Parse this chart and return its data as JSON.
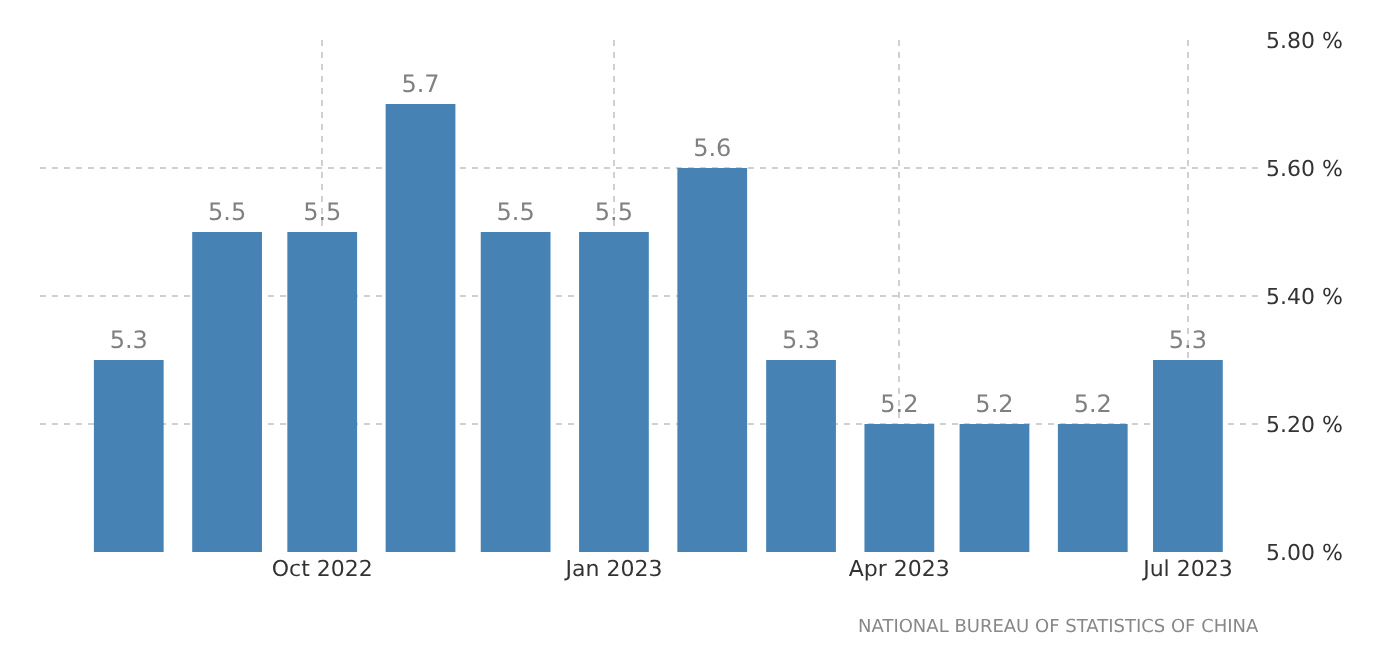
{
  "chart_data": {
    "type": "bar",
    "x": [
      "2022-08-01",
      "2022-09-01",
      "2022-10-01",
      "2022-11-01",
      "2022-12-01",
      "2023-01-01",
      "2023-02-01",
      "2023-03-01",
      "2023-04-01",
      "2023-05-01",
      "2023-06-01",
      "2023-07-01"
    ],
    "values": [
      5.3,
      5.5,
      5.5,
      5.7,
      5.5,
      5.5,
      5.6,
      5.3,
      5.2,
      5.2,
      5.2,
      5.3
    ],
    "color": "#4682b4",
    "data_labels": true,
    "xlim": [
      "2022-07-04",
      "2023-07-25"
    ],
    "xticks": [
      {
        "value": "2022-10-01",
        "label": "Oct 2022"
      },
      {
        "value": "2023-01-01",
        "label": "Jan 2023"
      },
      {
        "value": "2023-04-01",
        "label": "Apr 2023"
      },
      {
        "value": "2023-07-01",
        "label": "Jul 2023"
      }
    ],
    "ylim": [
      5.0,
      5.8
    ],
    "yticks": [
      {
        "value": 5.0,
        "label": "5.00 %"
      },
      {
        "value": 5.2,
        "label": "5.20 %"
      },
      {
        "value": 5.4,
        "label": "5.40 %"
      },
      {
        "value": 5.6,
        "label": "5.60 %"
      },
      {
        "value": 5.8,
        "label": "5.80 %"
      }
    ],
    "grid": true,
    "annotations": [
      "NATIONAL BUREAU OF STATISTICS OF CHINA"
    ]
  }
}
